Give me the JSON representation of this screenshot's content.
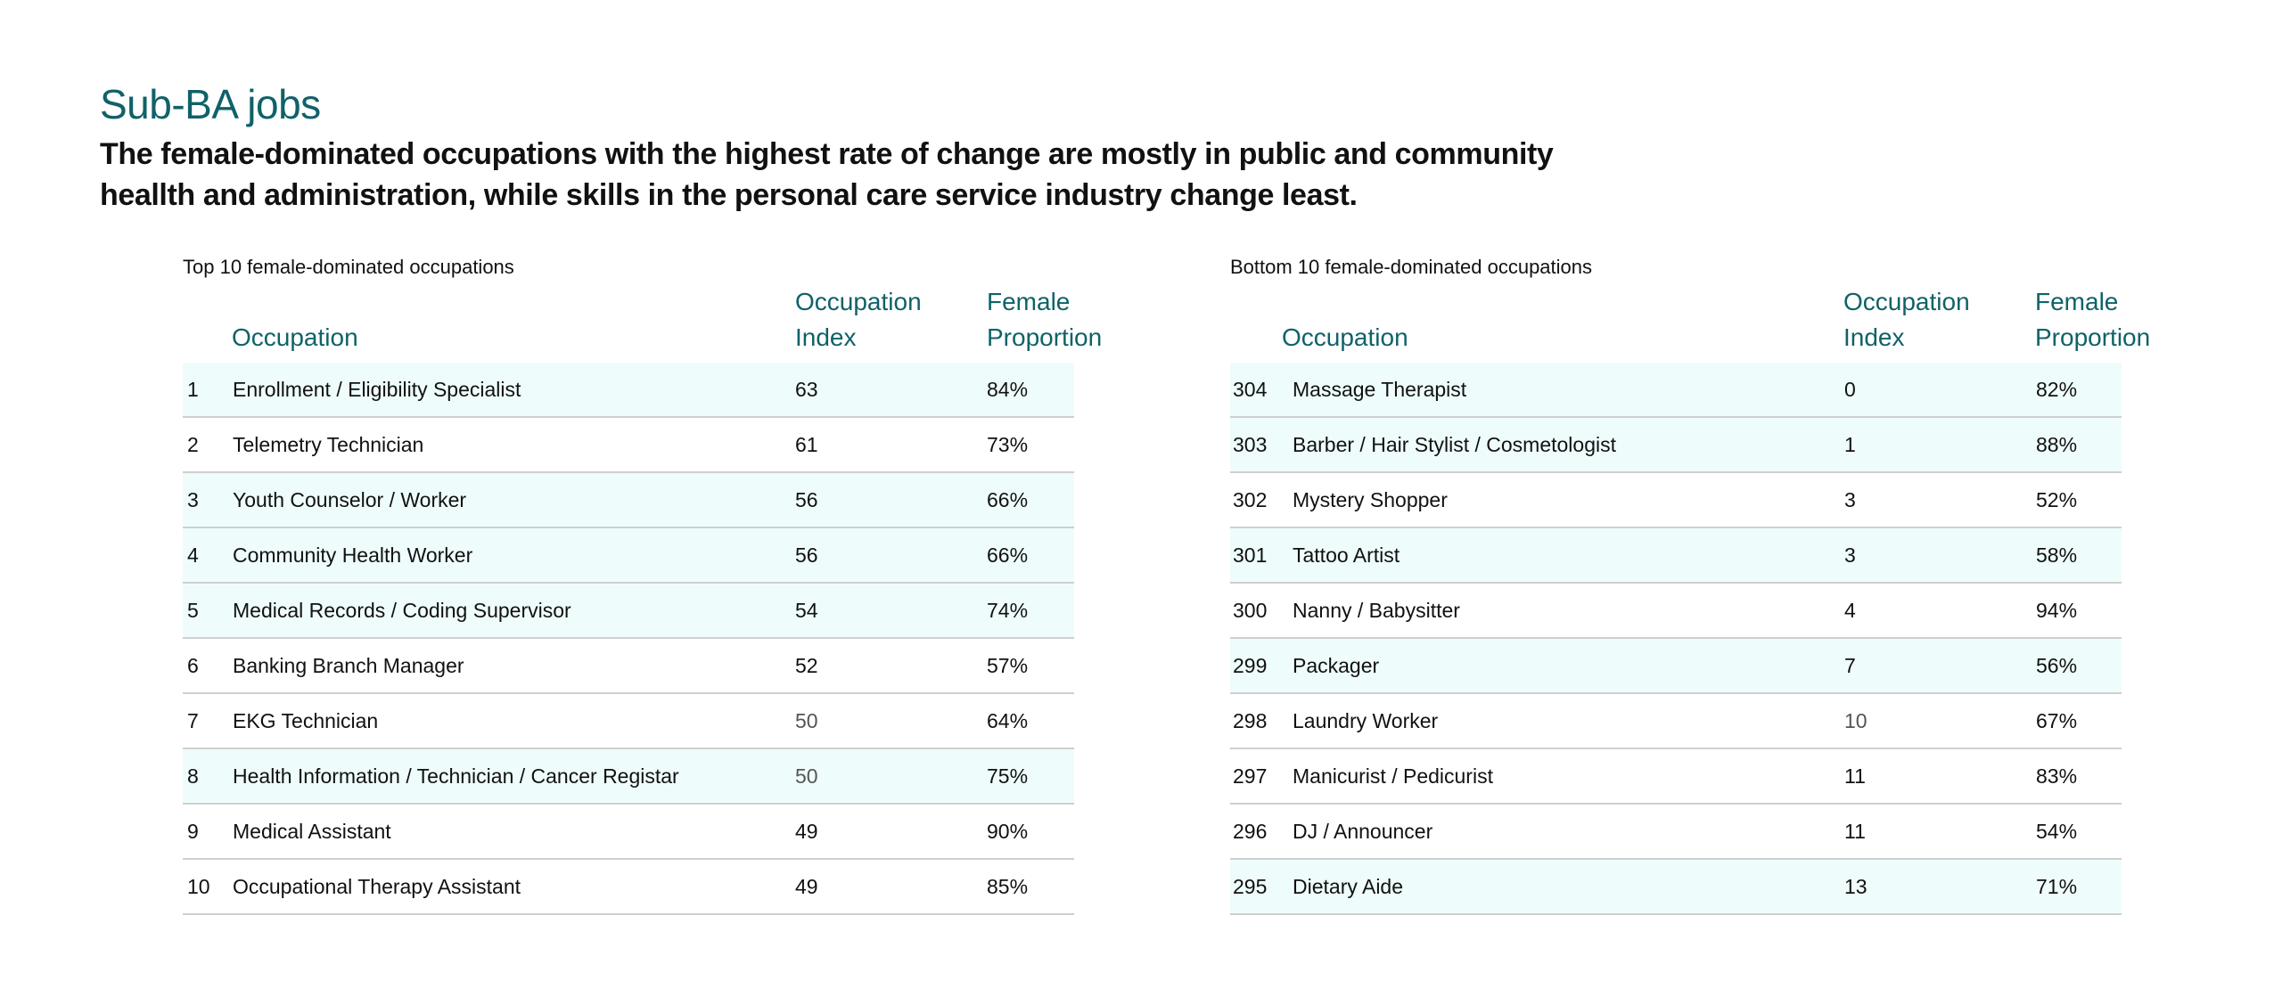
{
  "title": "Sub-BA jobs",
  "subtitle": "The female-dominated occupations with the highest rate of change are mostly in public and community heallth and administration, while skills in the personal care service industry change least.",
  "colors": {
    "accent": "#0f6268",
    "row_shade": "#effcfc",
    "rule": "#cfcfcf"
  },
  "chart_data": [
    {
      "type": "table",
      "title": "Top 10 female-dominated occupations",
      "columns": [
        "Occupation",
        "Occupation Index",
        "Female Proportion"
      ],
      "rows": [
        {
          "rank": "1",
          "occupation": "Enrollment / Eligibility Specialist",
          "index": "63",
          "female": "84%",
          "shaded": true
        },
        {
          "rank": "2",
          "occupation": "Telemetry Technician",
          "index": "61",
          "female": "73%",
          "shaded": false
        },
        {
          "rank": "3",
          "occupation": "Youth Counselor / Worker",
          "index": "56",
          "female": "66%",
          "shaded": true
        },
        {
          "rank": "4",
          "occupation": "Community Health Worker",
          "index": "56",
          "female": "66%",
          "shaded": true
        },
        {
          "rank": "5",
          "occupation": "Medical Records / Coding Supervisor",
          "index": "54",
          "female": "74%",
          "shaded": true
        },
        {
          "rank": "6",
          "occupation": "Banking Branch Manager",
          "index": "52",
          "female": "57%",
          "shaded": false
        },
        {
          "rank": "7",
          "occupation": "EKG Technician",
          "index": "50",
          "female": "64%",
          "shaded": false
        },
        {
          "rank": "8",
          "occupation": "Health Information / Technician / Cancer Registar",
          "index": "50",
          "female": "75%",
          "shaded": true
        },
        {
          "rank": "9",
          "occupation": "Medical Assistant",
          "index": "49",
          "female": "90%",
          "shaded": false
        },
        {
          "rank": "10",
          "occupation": "Occupational Therapy Assistant",
          "index": "49",
          "female": "85%",
          "shaded": false
        }
      ]
    },
    {
      "type": "table",
      "title": "Bottom 10 female-dominated occupations",
      "columns": [
        "Occupation",
        "Occupation Index",
        "Female Proportion"
      ],
      "rows": [
        {
          "rank": "304",
          "occupation": "Massage Therapist",
          "index": "0",
          "female": "82%",
          "shaded": true
        },
        {
          "rank": "303",
          "occupation": "Barber / Hair Stylist / Cosmetologist",
          "index": "1",
          "female": "88%",
          "shaded": true
        },
        {
          "rank": "302",
          "occupation": "Mystery Shopper",
          "index": "3",
          "female": "52%",
          "shaded": false
        },
        {
          "rank": "301",
          "occupation": "Tattoo Artist",
          "index": "3",
          "female": "58%",
          "shaded": true
        },
        {
          "rank": "300",
          "occupation": "Nanny / Babysitter",
          "index": "4",
          "female": "94%",
          "shaded": false
        },
        {
          "rank": "299",
          "occupation": "Packager",
          "index": "7",
          "female": "56%",
          "shaded": true
        },
        {
          "rank": "298",
          "occupation": "Laundry Worker",
          "index": "10",
          "female": "67%",
          "shaded": false
        },
        {
          "rank": "297",
          "occupation": "Manicurist / Pedicurist",
          "index": "11",
          "female": "83%",
          "shaded": false
        },
        {
          "rank": "296",
          "occupation": "DJ / Announcer",
          "index": "11",
          "female": "54%",
          "shaded": false
        },
        {
          "rank": "295",
          "occupation": "Dietary Aide",
          "index": "13",
          "female": "71%",
          "shaded": true
        }
      ]
    }
  ]
}
